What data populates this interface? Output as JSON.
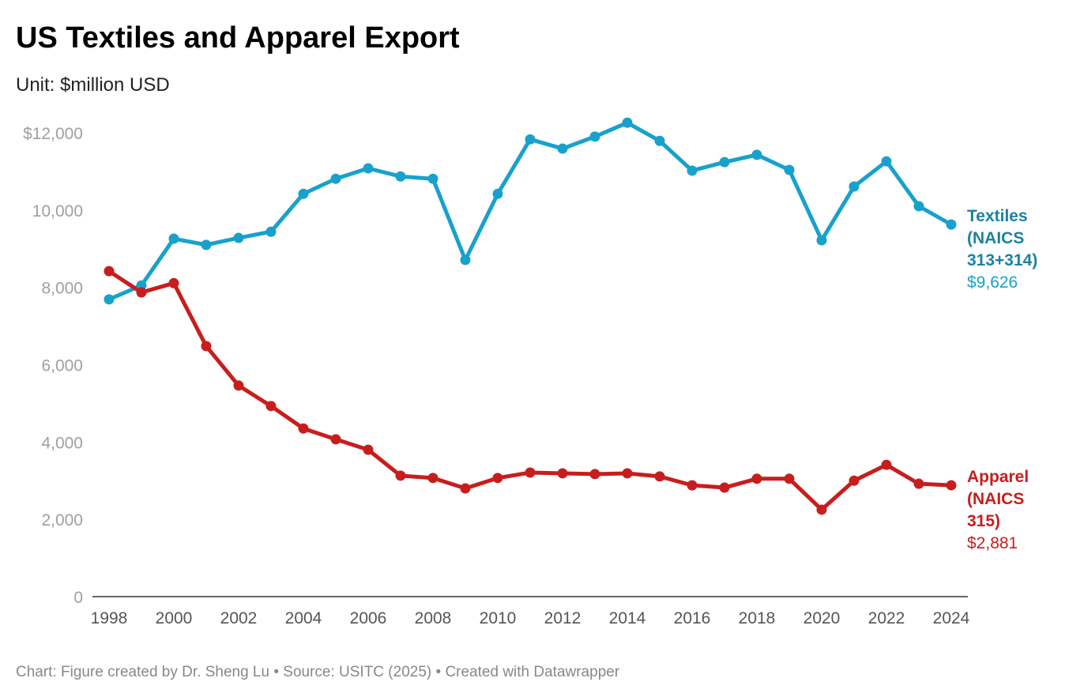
{
  "chart_data": {
    "type": "line",
    "title": "US Textiles and Apparel Export",
    "subtitle": "Unit: $million USD",
    "footer": "Chart: Figure created by Dr. Sheng Lu • Source: USITC (2025) • Created with Datawrapper",
    "x": [
      1998,
      1999,
      2000,
      2001,
      2002,
      2003,
      2004,
      2005,
      2006,
      2007,
      2008,
      2009,
      2010,
      2011,
      2012,
      2013,
      2014,
      2015,
      2016,
      2017,
      2018,
      2019,
      2020,
      2021,
      2022,
      2023,
      2024
    ],
    "xticks": [
      "1998",
      "2000",
      "2002",
      "2004",
      "2006",
      "2008",
      "2010",
      "2012",
      "2014",
      "2016",
      "2018",
      "2020",
      "2022",
      "2024"
    ],
    "yticks": [
      {
        "value": 0,
        "label": "0"
      },
      {
        "value": 2000,
        "label": "2,000"
      },
      {
        "value": 4000,
        "label": "4,000"
      },
      {
        "value": 6000,
        "label": "6,000"
      },
      {
        "value": 8000,
        "label": "8,000"
      },
      {
        "value": 10000,
        "label": "10,000"
      },
      {
        "value": 12000,
        "label": "$12,000"
      }
    ],
    "ylim": [
      0,
      12000
    ],
    "grid": false,
    "series": [
      {
        "name": "Textiles (NAICS 313+314)",
        "label_lines": [
          "Textiles",
          "(NAICS",
          "313+314)"
        ],
        "last_value_label": "$9,626",
        "color": "#18a1cd",
        "label_color": "#1d81a2",
        "values": [
          7690,
          8050,
          9260,
          9100,
          9280,
          9440,
          10420,
          10810,
          11080,
          10870,
          10810,
          8710,
          10420,
          11830,
          11590,
          11900,
          12260,
          11790,
          11020,
          11240,
          11430,
          11040,
          9220,
          10610,
          11260,
          10100,
          9626
        ]
      },
      {
        "name": "Apparel (NAICS 315)",
        "label_lines": [
          "Apparel",
          "(NAICS",
          "315)"
        ],
        "last_value_label": "$2,881",
        "color": "#c71e1d",
        "label_color": "#c71e1d",
        "values": [
          8420,
          7870,
          8110,
          6480,
          5460,
          4930,
          4350,
          4070,
          3800,
          3130,
          3070,
          2800,
          3070,
          3210,
          3190,
          3170,
          3190,
          3110,
          2880,
          2820,
          3050,
          3050,
          2250,
          3000,
          3410,
          2920,
          2881
        ]
      }
    ]
  }
}
